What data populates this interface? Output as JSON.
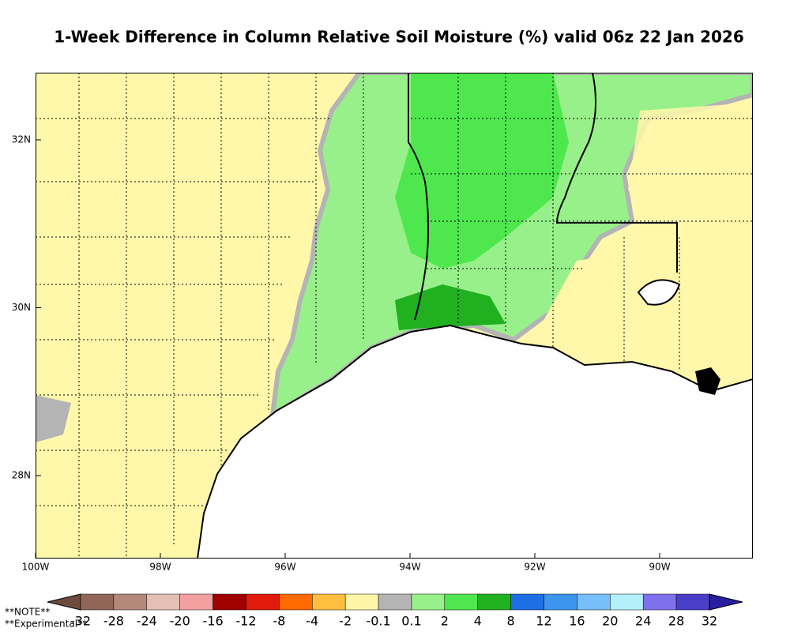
{
  "header": {
    "title": "1-Week Difference in Column Relative Soil Moisture (%) valid 06z 22 Jan 2026"
  },
  "map": {
    "lon_labels": [
      "100W",
      "98W",
      "96W",
      "94W",
      "92W",
      "90W"
    ],
    "lat_labels": [
      "32N",
      "30N",
      "28N"
    ]
  },
  "colorbar": {
    "labels": [
      -32,
      -28,
      -24,
      -20,
      -16,
      -12,
      -8,
      -4,
      -2,
      -0.1,
      0.1,
      2,
      4,
      8,
      12,
      16,
      20,
      24,
      28,
      32
    ],
    "colors": [
      "#6e4a3c",
      "#8f6657",
      "#b4897c",
      "#e4bfb4",
      "#f4a0a0",
      "#a00000",
      "#e01b0b",
      "#ff6a00",
      "#ffbe40",
      "#fff5a8",
      "#b4b4b4",
      "#98f08a",
      "#4ee84e",
      "#20b020",
      "#1e6ee6",
      "#3c96f0",
      "#78bef8",
      "#b4f0fa",
      "#7f70ee",
      "#4a3ec8",
      "#2a1ea0"
    ]
  },
  "notes": [
    "**NOTE**",
    "**Experimental**"
  ]
}
